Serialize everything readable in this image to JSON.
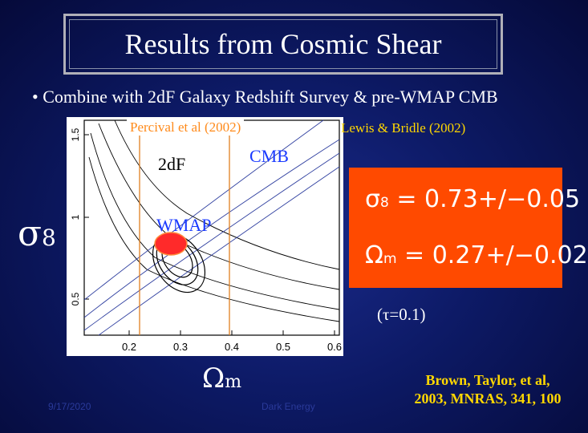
{
  "slide": {
    "title": "Results from Cosmic Shear",
    "bullet": "• Combine with 2dF Galaxy Redshift Survey & pre-WMAP CMB",
    "plot_credit_left": "Percival et al (2002)",
    "plot_credit_right": "Lewis & Bridle (2002)",
    "label_2df": "2dF",
    "label_cmb": "CMB",
    "label_wmap": "WMAP",
    "y_axis_symbol": "σ",
    "y_axis_sub": "8",
    "x_axis_symbol": "Ω",
    "x_axis_sub": "m",
    "x_ticks": [
      "0.2",
      "0.3",
      "0.4",
      "0.5",
      "0.6"
    ],
    "y_ticks": [
      "0.5",
      "1",
      "1.5"
    ],
    "result_sigma_symbol": "σ",
    "result_sigma_sub": "8",
    "result_sigma_value": " = 0.73+/−0.05",
    "result_omega_symbol": "Ω",
    "result_omega_sub": "m",
    "result_omega_value": " = 0.27+/−0.02",
    "tau_note": "(τ=0.1)",
    "reference_line1": "Brown, Taylor, et al,",
    "reference_line2": "2003, MNRAS, 341, 100",
    "footer_left": "9/17/2020",
    "footer_center": "Dark Energy"
  },
  "colors": {
    "background": "#0d1a66",
    "result_box": "#ff4a00",
    "orange_lines": "#e08020",
    "reference": "#ffd700",
    "blue_label": "#1a3aff",
    "wmap_fill": "#ff2a2a"
  }
}
